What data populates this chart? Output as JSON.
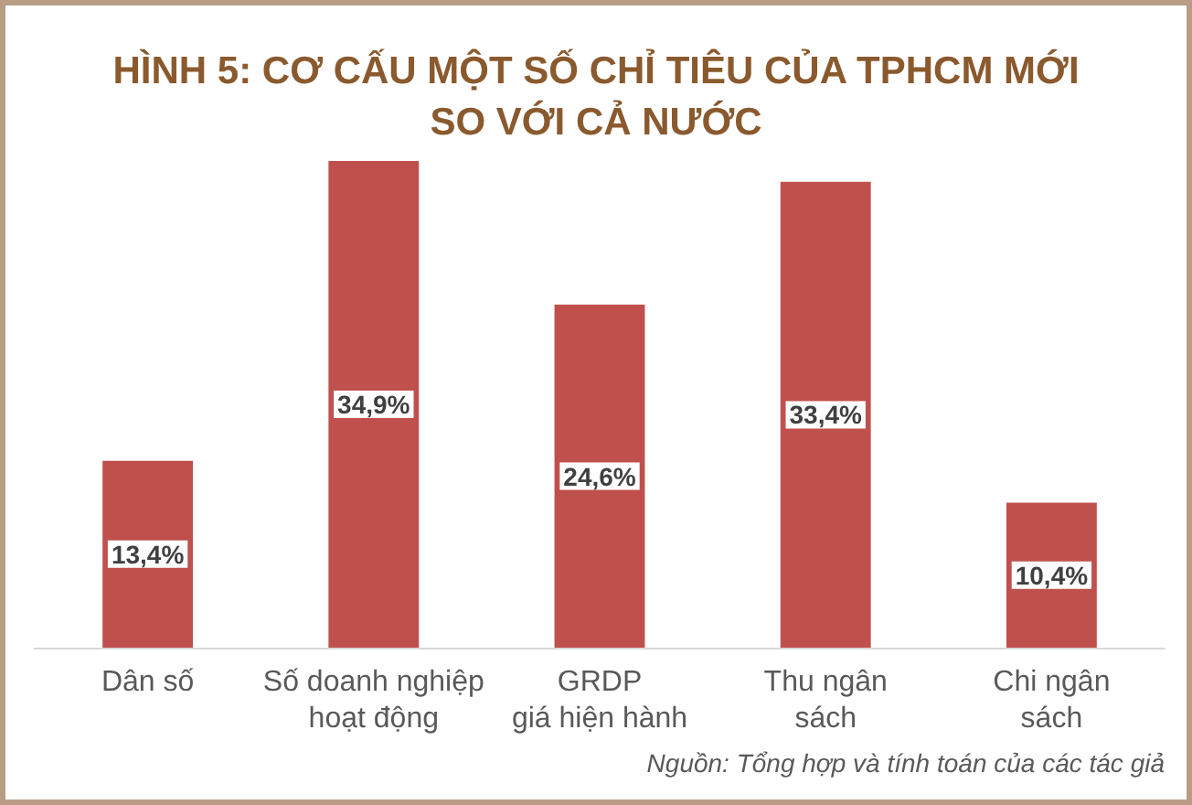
{
  "chart_data": {
    "type": "bar",
    "title": "HÌNH 5: CƠ CẤU MỘT SỐ CHỈ TIÊU CỦA TPHCM MỚI\nSO VỚI CẢ NƯỚC",
    "categories": [
      "Dân số",
      "Số doanh nghiệp\nhoạt động",
      "GRDP\ngiá hiện hành",
      "Thu ngân\nsách",
      "Chi ngân\nsách"
    ],
    "values": [
      13.4,
      34.9,
      24.6,
      33.4,
      10.4
    ],
    "value_labels": [
      "13,4%",
      "34,9%",
      "24,6%",
      "33,4%",
      "10,4%"
    ],
    "color": "#c0504d",
    "tick_labels": "x",
    "grid": false,
    "annotations": [
      "Nguồn: Tổng hợp và tính toán của các tác giả"
    ]
  }
}
